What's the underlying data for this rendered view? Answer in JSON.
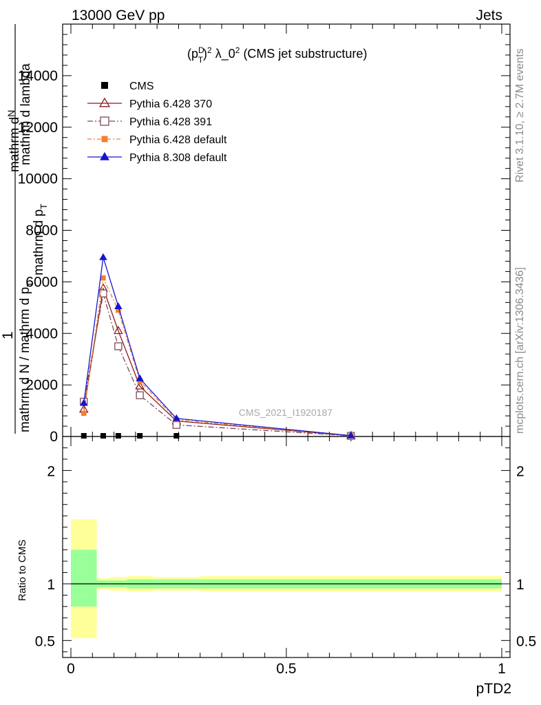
{
  "header": {
    "left": "13000 GeV pp",
    "right": "Jets"
  },
  "side_text": {
    "rivet": "Rivet 3.1.10, ≥ 2.7M events",
    "mcplots": "mcplots.cern.ch [arXiv:1306.3436]"
  },
  "watermark": "CMS_2021_I1920187",
  "chart_data": {
    "type": "line",
    "title": "(p_T^D)^2 λ_0^2 (CMS jet substructure)",
    "title_parts": {
      "p": "(p",
      "sup_d": "D",
      "sub_t": "T",
      "close": ")",
      "sup2": "2",
      "rest1": " λ_0",
      "sup2b": "2",
      "rest2": " (CMS jet substructure)"
    },
    "xlabel": "pTD2",
    "ylabel_parts": {
      "left_1": "mathrm d",
      "left_2": "N",
      "left_big": "1",
      "left_3": "mathrm d N / mathrm d p",
      "left_3_sub": "T",
      "right_1": "mathrm d p",
      "right_1_sub": "T",
      "right_2": "mathrm d lambda"
    },
    "xlim": [
      0,
      1
    ],
    "ylim": [
      0,
      16000
    ],
    "yticks": [
      0,
      2000,
      4000,
      6000,
      8000,
      10000,
      12000,
      14000
    ],
    "ytick_labels": [
      "0",
      "2000",
      "4000",
      "6000",
      "8000",
      "10000",
      "12000",
      "14000"
    ],
    "xticks": [
      0,
      0.5,
      1
    ],
    "xtick_labels": [
      "0",
      "0.5",
      "1"
    ],
    "legend_placement": "top-left",
    "series": [
      {
        "name": "CMS",
        "color": "#000000",
        "marker": "square-filled",
        "dash": "",
        "x": [
          0.03,
          0.075,
          0.11,
          0.16,
          0.245,
          0.65
        ],
        "y": [
          0,
          0,
          0,
          0,
          0,
          0
        ]
      },
      {
        "name": "Pythia 6.428 370",
        "color": "#8b1a1a",
        "marker": "triangle-open",
        "dash": "",
        "x": [
          0.03,
          0.075,
          0.11,
          0.16,
          0.245,
          0.65
        ],
        "y": [
          1050,
          5750,
          4100,
          1950,
          600,
          30
        ]
      },
      {
        "name": "Pythia 6.428 391",
        "color": "#7a4a5a",
        "marker": "square-open",
        "dash": "8,3,2,3",
        "x": [
          0.03,
          0.075,
          0.11,
          0.16,
          0.245,
          0.65
        ],
        "y": [
          1350,
          5550,
          3500,
          1600,
          450,
          25
        ]
      },
      {
        "name": "Pythia 6.428 default",
        "color": "#f08030",
        "marker": "square-filled-small",
        "dash": "6,3,2,3",
        "x": [
          0.03,
          0.075,
          0.11,
          0.16,
          0.245,
          0.65
        ],
        "y": [
          900,
          6150,
          4900,
          2150,
          650,
          30
        ]
      },
      {
        "name": "Pythia 8.308 default",
        "color": "#1515d0",
        "marker": "triangle-filled",
        "dash": "",
        "x": [
          0.03,
          0.075,
          0.11,
          0.16,
          0.245,
          0.65
        ],
        "y": [
          1300,
          6950,
          5050,
          2250,
          700,
          35
        ]
      }
    ],
    "ratio": {
      "ylabel": "Ratio to CMS",
      "ylim": [
        0.35,
        2.3
      ],
      "yticks": [
        0.5,
        1,
        2
      ],
      "ytick_labels": [
        "0.5",
        "1",
        "2"
      ],
      "bands": [
        {
          "x0": 0.0,
          "x1": 0.06,
          "green": [
            0.8,
            1.3
          ],
          "yellow": [
            0.52,
            1.57
          ]
        },
        {
          "x0": 0.06,
          "x1": 0.09,
          "green": [
            0.97,
            1.03
          ],
          "yellow": [
            0.95,
            1.05
          ]
        },
        {
          "x0": 0.09,
          "x1": 0.13,
          "green": [
            0.97,
            1.03
          ],
          "yellow": [
            0.94,
            1.06
          ]
        },
        {
          "x0": 0.13,
          "x1": 0.19,
          "green": [
            0.96,
            1.04
          ],
          "yellow": [
            0.93,
            1.07
          ]
        },
        {
          "x0": 0.19,
          "x1": 0.3,
          "green": [
            0.96,
            1.04
          ],
          "yellow": [
            0.94,
            1.06
          ]
        },
        {
          "x0": 0.3,
          "x1": 1.0,
          "green": [
            0.96,
            1.04
          ],
          "yellow": [
            0.93,
            1.07
          ]
        }
      ],
      "green_color": "#99ff99",
      "yellow_color": "#ffff99"
    }
  }
}
